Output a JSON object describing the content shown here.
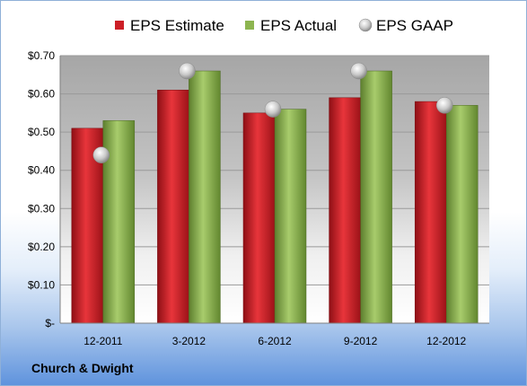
{
  "chart_data": {
    "type": "bar",
    "categories": [
      "12-2011",
      "3-2012",
      "6-2012",
      "9-2012",
      "12-2012"
    ],
    "series": [
      {
        "name": "EPS Estimate",
        "kind": "bar",
        "values": [
          0.51,
          0.61,
          0.55,
          0.59,
          0.58
        ],
        "color": "#cc1f26"
      },
      {
        "name": "EPS Actual",
        "kind": "bar",
        "values": [
          0.53,
          0.66,
          0.56,
          0.66,
          0.57
        ],
        "color": "#8db550"
      },
      {
        "name": "EPS GAAP",
        "kind": "marker",
        "values": [
          0.44,
          0.66,
          0.56,
          0.66,
          0.57
        ],
        "color": "#bfbfbf"
      }
    ],
    "yticks": [
      "$-",
      "$0.10",
      "$0.20",
      "$0.30",
      "$0.40",
      "$0.50",
      "$0.60",
      "$0.70"
    ],
    "ylim": [
      0,
      0.7
    ],
    "grid": true,
    "legend_position": "top"
  },
  "company": "Church & Dwight"
}
